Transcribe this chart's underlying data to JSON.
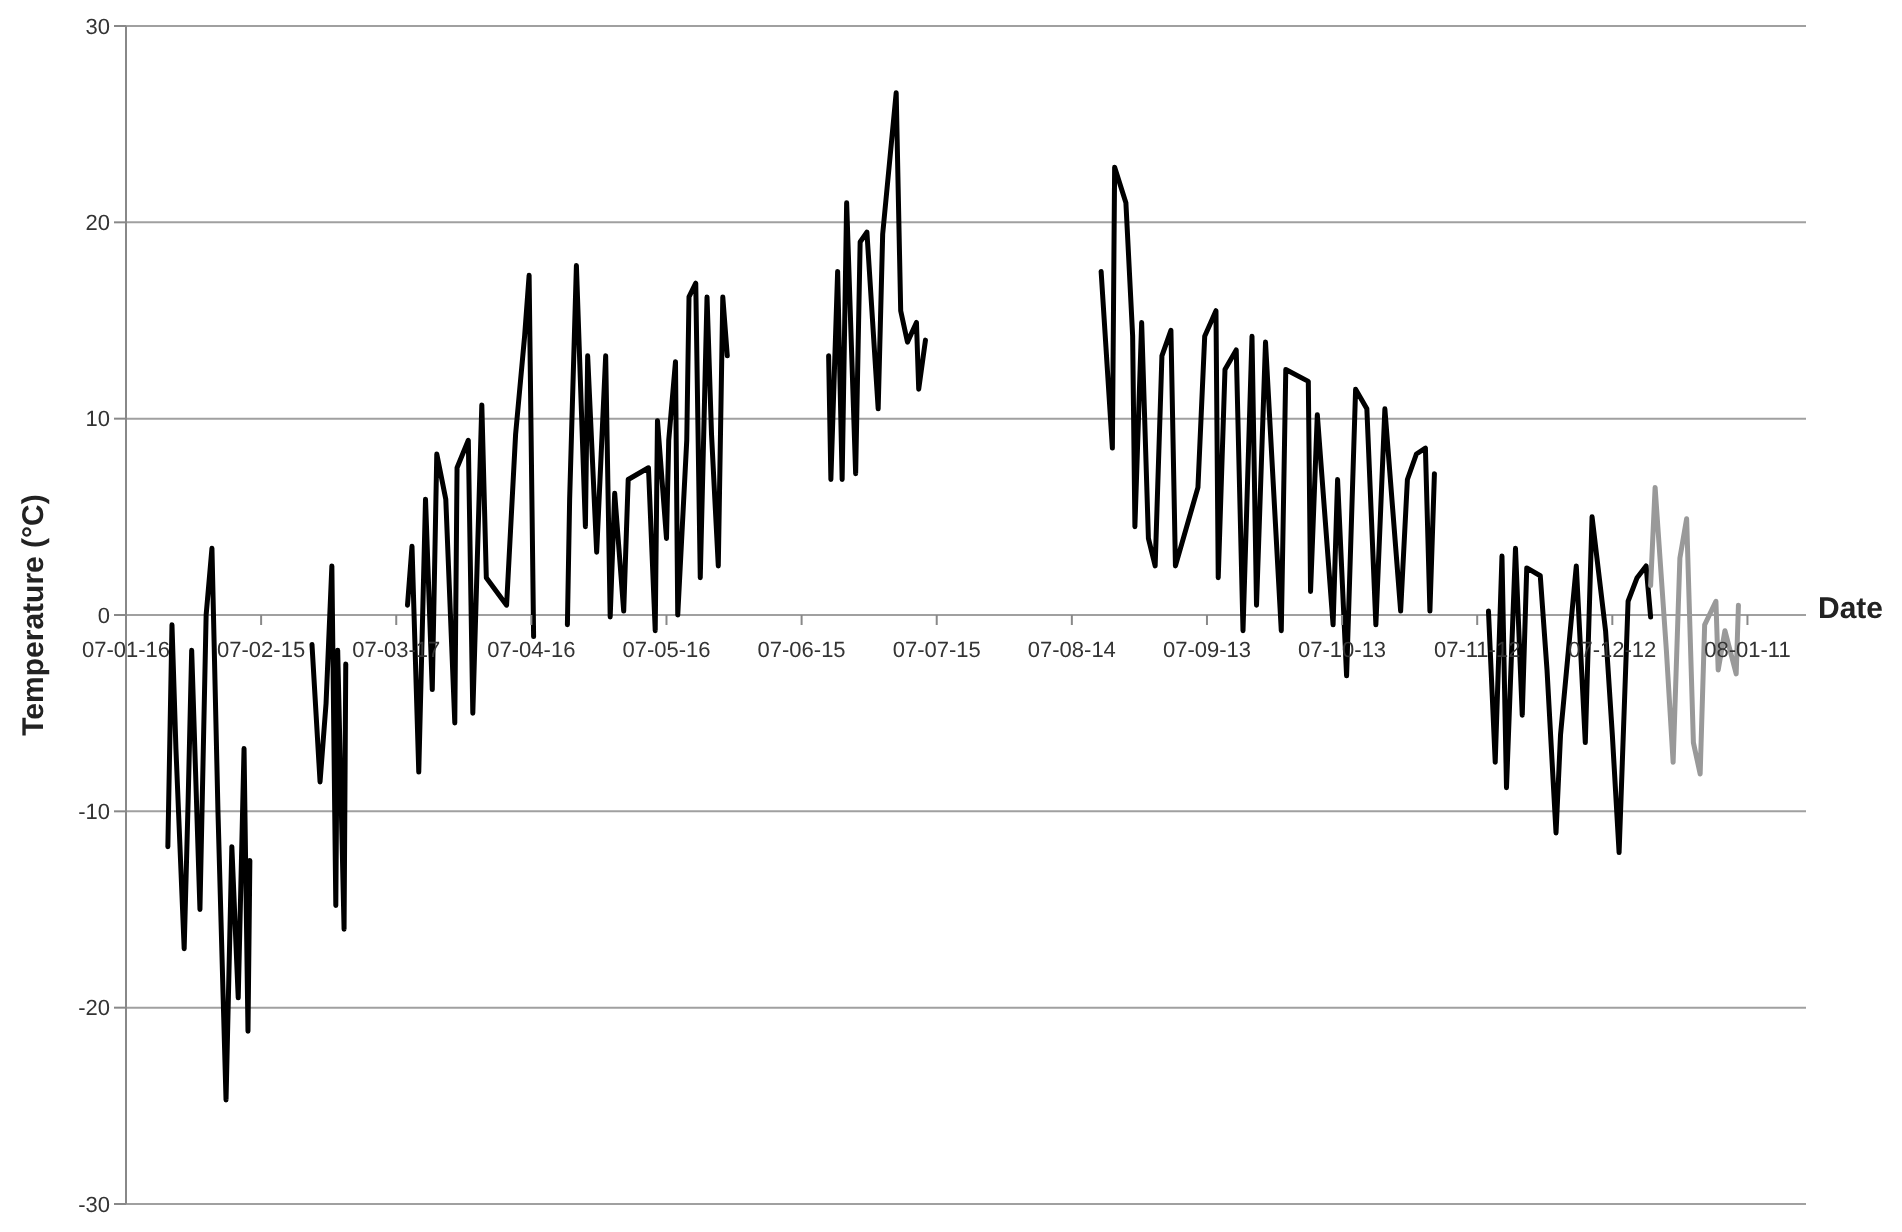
{
  "chart_data": {
    "type": "line",
    "xlabel": "Date",
    "ylabel": "Temperature (°C)",
    "xlim": [
      "2007-01-16",
      "2008-01-24"
    ],
    "xticks": [
      {
        "value": "2007-01-16",
        "label": "07-01-16"
      },
      {
        "value": "2007-02-15",
        "label": "07-02-15"
      },
      {
        "value": "2007-03-17",
        "label": "07-03-17"
      },
      {
        "value": "2007-04-16",
        "label": "07-04-16"
      },
      {
        "value": "2007-05-16",
        "label": "07-05-16"
      },
      {
        "value": "2007-06-15",
        "label": "07-06-15"
      },
      {
        "value": "2007-07-15",
        "label": "07-07-15"
      },
      {
        "value": "2007-08-14",
        "label": "07-08-14"
      },
      {
        "value": "2007-09-13",
        "label": "07-09-13"
      },
      {
        "value": "2007-10-13",
        "label": "07-10-13"
      },
      {
        "value": "2007-11-12",
        "label": "07-11-12"
      },
      {
        "value": "2007-12-12",
        "label": "07-12-12"
      },
      {
        "value": "2008-01-11",
        "label": "08-01-11"
      }
    ],
    "ylim": [
      -30,
      30
    ],
    "yticks": [
      -30,
      -20,
      -10,
      0,
      10,
      20,
      30
    ],
    "grid": "y",
    "series": [
      {
        "color": "#000000",
        "x": [
          "2007-01-25T07:00",
          "2007-01-26T05:00",
          "2007-01-27T02:00",
          "2007-01-28T22:00",
          "2007-01-29T19:00",
          "2007-01-30T14:00",
          "2007-02-01T10:00",
          "2007-02-02T19:00",
          "2007-02-04T02:00",
          "2007-02-05T10:00",
          "2007-02-07T05:00",
          "2007-02-08T12:00",
          "2007-02-09T22:00",
          "2007-02-11T05:00",
          "2007-02-12T02:00",
          "2007-02-12T12:00",
          "2007-02-20",
          "2007-02-26T07:00",
          "2007-02-28T02:00",
          "2007-03-01T10:00",
          "2007-03-02T17:00",
          "2007-03-03T14:00",
          "2007-03-04",
          "2007-03-05T10:00",
          "2007-03-05T19:00",
          "2007-03-12",
          "2007-03-19T12:00",
          "2007-03-20T12:00",
          "2007-03-22",
          "2007-03-23T12:00",
          "2007-03-25",
          "2007-03-26",
          "2007-03-28",
          "2007-03-30",
          "2007-03-30T12:00",
          "2007-04-02",
          "2007-04-03",
          "2007-04-05",
          "2007-04-06",
          "2007-04-10T12:00",
          "2007-04-12T12:00",
          "2007-04-14T12:00",
          "2007-04-15T12:00",
          "2007-04-16T12:00",
          "2007-04-20",
          "2007-04-24",
          "2007-04-24T12:00",
          "2007-04-26",
          "2007-04-28",
          "2007-04-28T12:00",
          "2007-04-30T12:00",
          "2007-05-01T12:00",
          "2007-05-02T12:00",
          "2007-05-03T12:00",
          "2007-05-04T12:00",
          "2007-05-06T12:00",
          "2007-05-07T12:00",
          "2007-05-12",
          "2007-05-13T12:00",
          "2007-05-14",
          "2007-05-16",
          "2007-05-16T12:00",
          "2007-05-18",
          "2007-05-18T12:00",
          "2007-05-20T12:00",
          "2007-05-21",
          "2007-05-22T12:00",
          "2007-05-23T12:00",
          "2007-05-25",
          "2007-05-26",
          "2007-05-27T12:00",
          "2007-05-28T12:00",
          "2007-05-29T12:00",
          "2007-06-10",
          "2007-06-21",
          "2007-06-21T12:00",
          "2007-06-23",
          "2007-06-24",
          "2007-06-25",
          "2007-06-27",
          "2007-06-28",
          "2007-06-29T12:00",
          "2007-07-02",
          "2007-07-03",
          "2007-07-05",
          "2007-07-06",
          "2007-07-07",
          "2007-07-08T12:00",
          "2007-07-10T12:00",
          "2007-07-11",
          "2007-07-12T12:00",
          "2007-08-01",
          "2007-08-20T12:00",
          "2007-08-23",
          "2007-08-23T12:00",
          "2007-08-26",
          "2007-08-27T12:00",
          "2007-08-28",
          "2007-08-29T12:00",
          "2007-08-31",
          "2007-09-01T12:00",
          "2007-09-03",
          "2007-09-05",
          "2007-09-06",
          "2007-09-11",
          "2007-09-12T12:00",
          "2007-09-15",
          "2007-09-15T12:00",
          "2007-09-17",
          "2007-09-19T12:00",
          "2007-09-21",
          "2007-09-23",
          "2007-09-24",
          "2007-09-26",
          "2007-09-29T12:00",
          "2007-09-30T12:00",
          "2007-10-05T12:00",
          "2007-10-06",
          "2007-10-07T12:00",
          "2007-10-11",
          "2007-10-12",
          "2007-10-14",
          "2007-10-16",
          "2007-10-18T12:00",
          "2007-10-20T12:00",
          "2007-10-22T12:00",
          "2007-10-26",
          "2007-10-27T12:00",
          "2007-10-29T12:00",
          "2007-10-31T12:00",
          "2007-11-01T12:00",
          "2007-11-02T12:00",
          "2007-11-08",
          "2007-11-14T12:00",
          "2007-11-16",
          "2007-11-17T12:00",
          "2007-11-18T12:00",
          "2007-11-20T12:00",
          "2007-11-22",
          "2007-11-23",
          "2007-11-26",
          "2007-11-27T12:00",
          "2007-11-29T12:00",
          "2007-11-30T12:00",
          "2007-12-04",
          "2007-12-06",
          "2007-12-07T12:00",
          "2007-12-10T12:00",
          "2007-12-12",
          "2007-12-13T12:00",
          "2007-12-15T12:00",
          "2007-12-17T12:00",
          "2007-12-19T12:00",
          "2007-12-20T12:00"
        ],
        "values": [
          -11.8,
          -0.5,
          -6.8,
          -17,
          -9.5,
          -1.8,
          -15,
          0,
          3.4,
          -10,
          -24.7,
          -11.8,
          -19.5,
          -6.8,
          -21.2,
          -12.5,
          null,
          -1.5,
          -8.5,
          -4.5,
          2.5,
          -14.8,
          -1.8,
          -16,
          -2.5,
          null,
          0.5,
          3.5,
          -8,
          5.9,
          -3.8,
          8.2,
          5.9,
          -5.5,
          7.5,
          8.9,
          -5,
          10.7,
          1.9,
          0.5,
          9.2,
          14.2,
          17.3,
          -1.1,
          null,
          -0.5,
          5.9,
          17.8,
          4.5,
          13.2,
          3.2,
          8.2,
          13.2,
          -0.1,
          6.2,
          0.2,
          6.9,
          7.5,
          -0.8,
          9.9,
          3.9,
          8.9,
          12.9,
          0,
          8.9,
          16.2,
          16.9,
          1.9,
          16.2,
          9.2,
          2.5,
          16.2,
          13.2,
          null,
          13.2,
          6.9,
          17.5,
          6.9,
          21,
          7.2,
          19,
          19.5,
          10.5,
          19.4,
          24.2,
          26.6,
          15.5,
          13.9,
          14.9,
          11.5,
          14,
          null,
          17.5,
          8.5,
          22.8,
          21,
          14.2,
          4.5,
          14.9,
          3.9,
          2.5,
          13.2,
          14.5,
          2.5,
          6.5,
          14.2,
          15.5,
          1.9,
          12.5,
          13.5,
          -0.8,
          14.2,
          0.5,
          13.9,
          -0.8,
          12.5,
          11.9,
          1.2,
          10.2,
          -0.5,
          6.9,
          -3.1,
          11.5,
          10.5,
          -0.5,
          10.5,
          0.2,
          6.9,
          8.2,
          8.5,
          0.2,
          7.2,
          null,
          0.2,
          -7.5,
          3,
          -8.8,
          3.4,
          -5.1,
          2.4,
          2,
          -2.8,
          -11.1,
          -6.1,
          2.5,
          -6.5,
          5,
          -0.8,
          -6.1,
          -12.1,
          0.7,
          1.9,
          2.5,
          -0.1
        ]
      },
      {
        "color": "#999999",
        "x": [
          "2007-12-20T12:00",
          "2007-12-21T12:00",
          "2007-12-24",
          "2007-12-25T12:00",
          "2007-12-27",
          "2007-12-28T12:00",
          "2007-12-30",
          "2007-12-31T12:00",
          "2008-01-01T12:00",
          "2008-01-04",
          "2008-01-04T12:00",
          "2008-01-06",
          "2008-01-08T12:00",
          "2008-01-09"
        ],
        "values": [
          1.5,
          6.5,
          -1.8,
          -7.5,
          2.9,
          4.9,
          -6.5,
          -8.1,
          -0.5,
          0.7,
          -2.8,
          -0.8,
          -3,
          0.5
        ]
      }
    ]
  }
}
